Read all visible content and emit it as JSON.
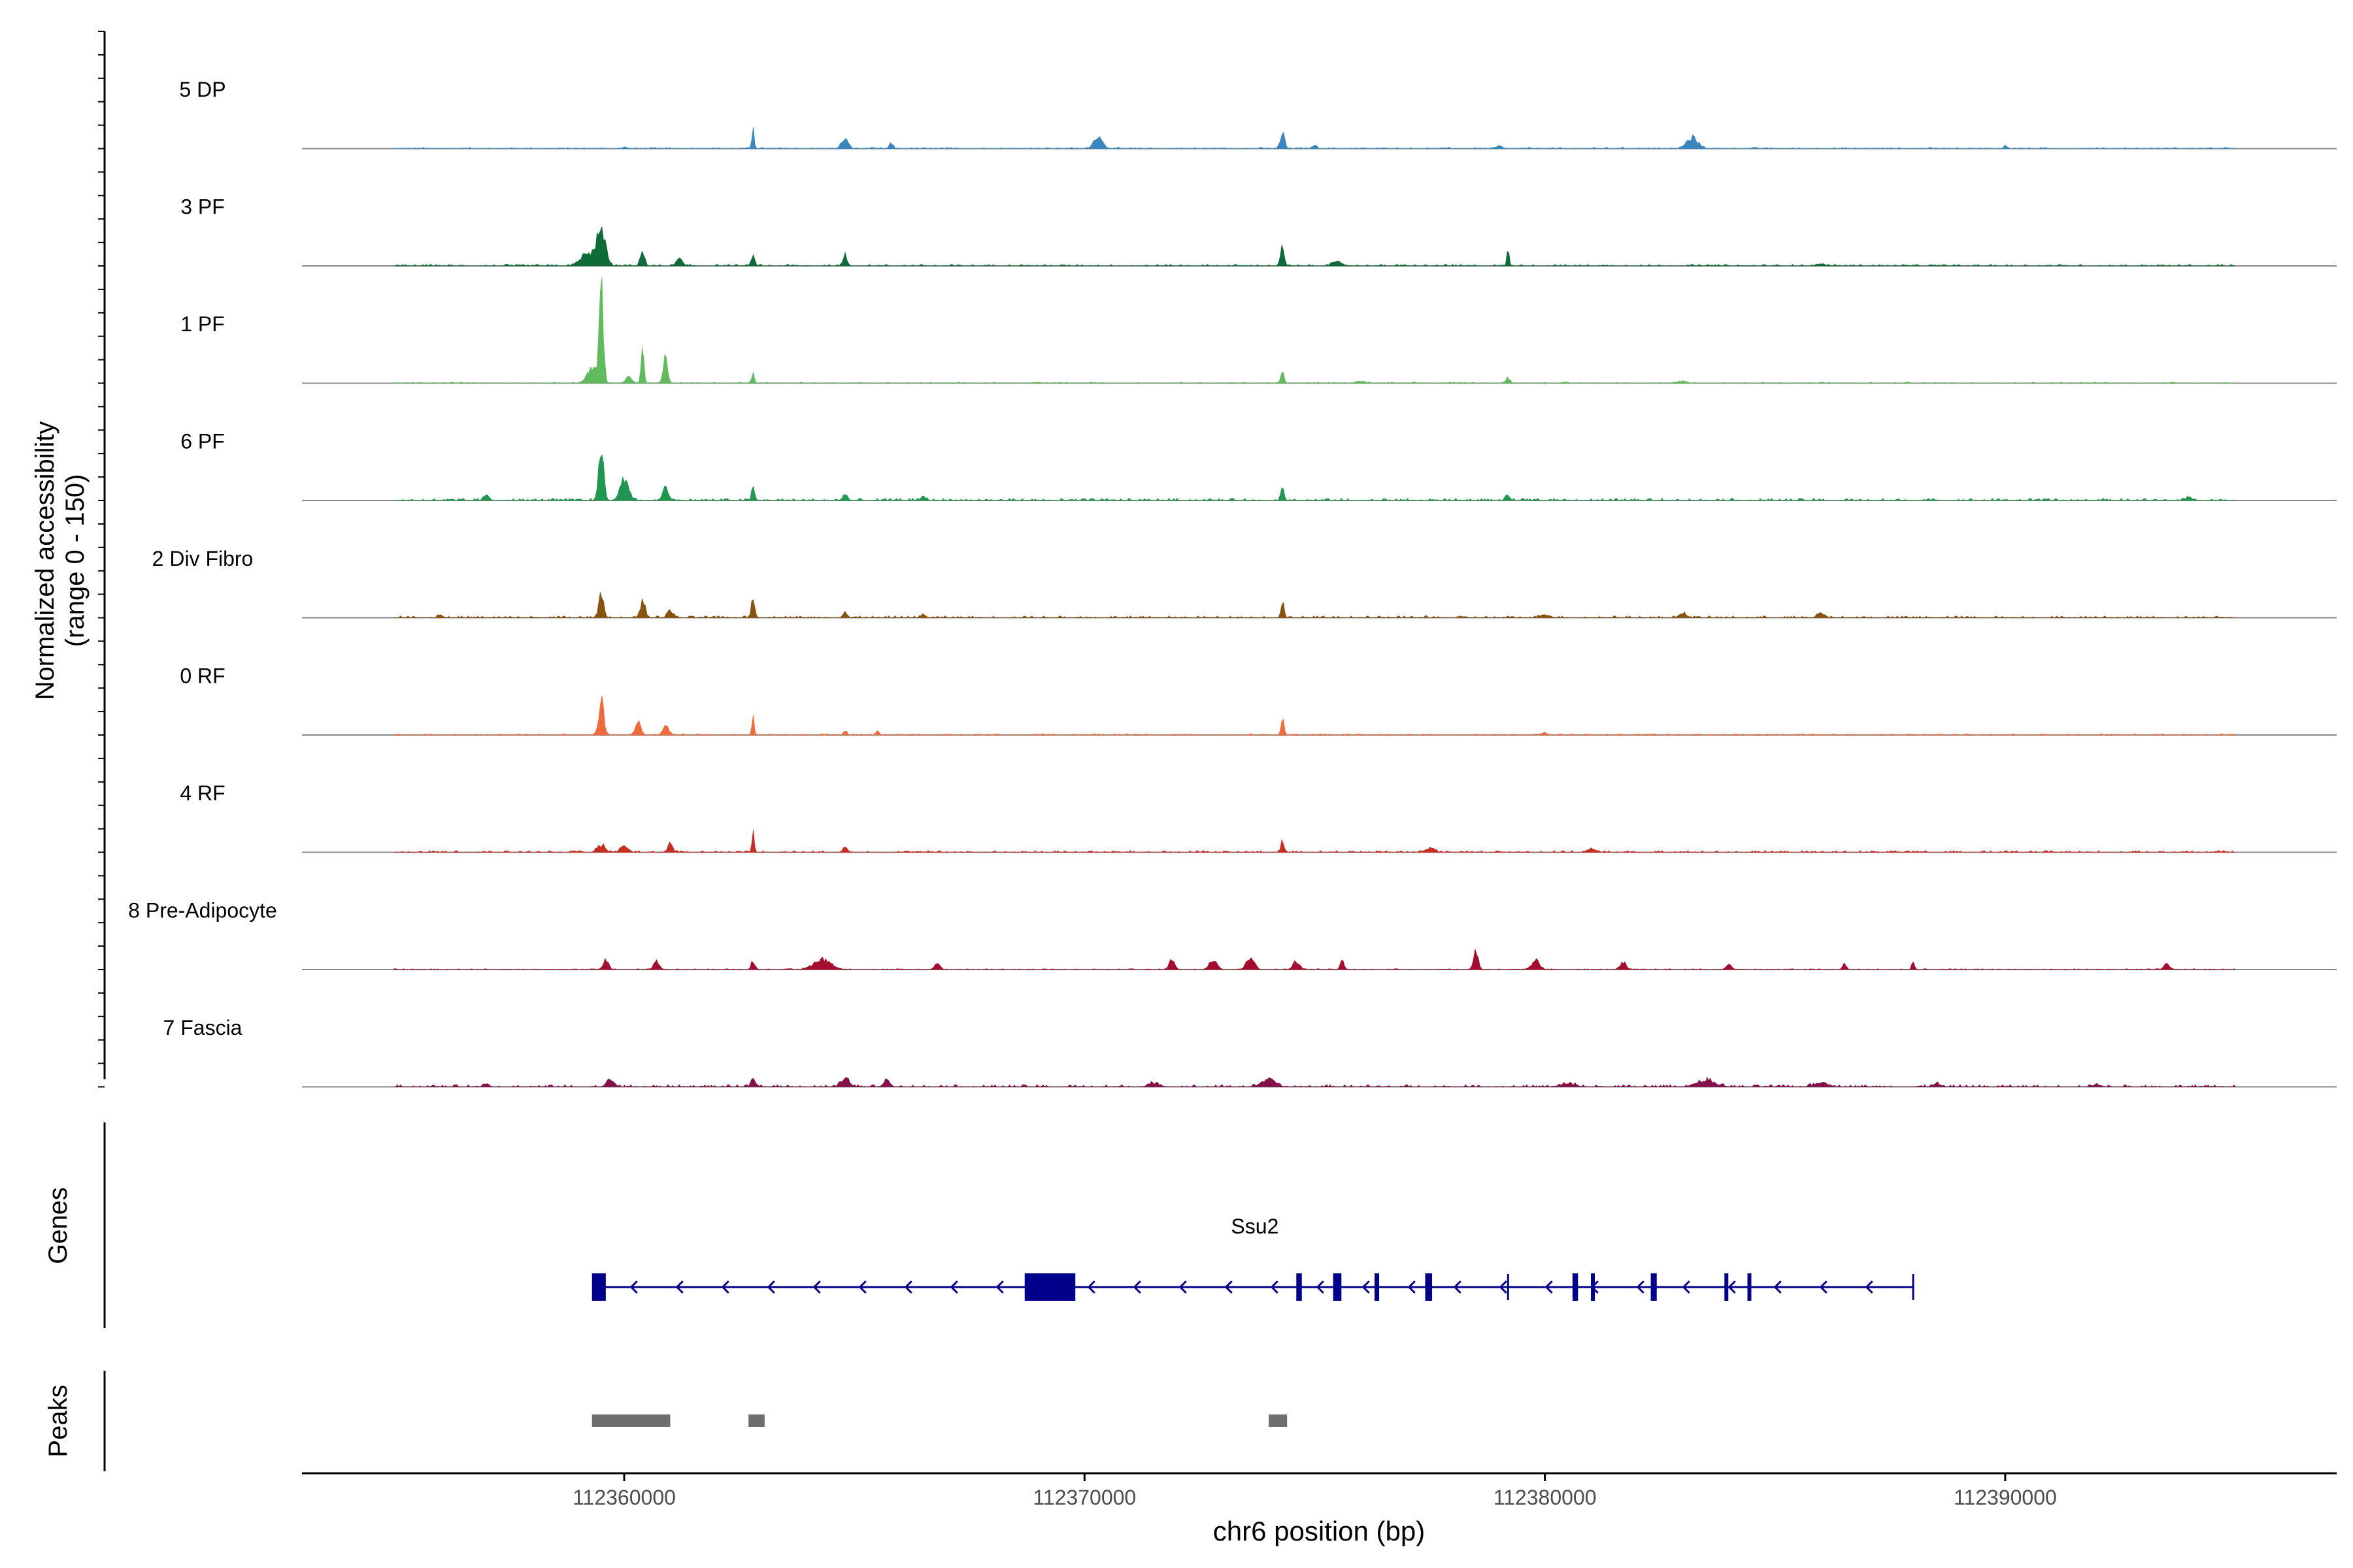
{
  "chart_data": {
    "type": "area",
    "ylabel_line1": "Normalized accessibility",
    "ylabel_line2": "(range 0 - 150)",
    "xlabel": "chr6 position (bp)",
    "xlim": [
      112353000,
      112397200
    ],
    "xticks": [
      112360000,
      112370000,
      112380000,
      112390000
    ],
    "xtick_labels": [
      "112360000",
      "112370000",
      "112380000",
      "112390000"
    ],
    "ylim": [
      0,
      150
    ],
    "tracks_x_range": [
      112355000,
      112395000
    ],
    "series": [
      {
        "name": "5 DP",
        "color": "#3a87c0",
        "noise": 1.2,
        "peaks": [
          [
            112360000,
            1.5,
            40
          ],
          [
            112362800,
            18,
            25
          ],
          [
            112364800,
            10,
            70
          ],
          [
            112365800,
            5,
            40
          ],
          [
            112370300,
            12,
            90
          ],
          [
            112374300,
            16,
            45
          ],
          [
            112375000,
            3,
            40
          ],
          [
            112383200,
            10,
            120
          ],
          [
            112379000,
            3,
            50
          ],
          [
            112390000,
            4,
            30
          ]
        ]
      },
      {
        "name": "3 PF",
        "color": "#0f6b38",
        "noise": 1.5,
        "peaks": [
          [
            112359500,
            35,
            90
          ],
          [
            112359200,
            12,
            140
          ],
          [
            112360400,
            14,
            45
          ],
          [
            112361200,
            8,
            55
          ],
          [
            112362800,
            11,
            35
          ],
          [
            112364800,
            12,
            40
          ],
          [
            112374300,
            18,
            40
          ],
          [
            112379200,
            16,
            25
          ],
          [
            112375500,
            3,
            120
          ],
          [
            112386000,
            2,
            70
          ]
        ]
      },
      {
        "name": "1 PF",
        "color": "#61bb5e",
        "noise": 1.0,
        "peaks": [
          [
            112359500,
            85,
            45
          ],
          [
            112359300,
            15,
            110
          ],
          [
            112360400,
            30,
            30
          ],
          [
            112360900,
            26,
            45
          ],
          [
            112360100,
            6,
            60
          ],
          [
            112362800,
            9,
            30
          ],
          [
            112374300,
            12,
            35
          ],
          [
            112379200,
            5,
            40
          ],
          [
            112376000,
            2,
            80
          ],
          [
            112383000,
            2,
            80
          ]
        ]
      },
      {
        "name": "6 PF",
        "color": "#219650",
        "noise": 2.0,
        "peaks": [
          [
            112359500,
            45,
            55
          ],
          [
            112360000,
            22,
            90
          ],
          [
            112360900,
            14,
            60
          ],
          [
            112362800,
            14,
            30
          ],
          [
            112357000,
            4,
            60
          ],
          [
            112364800,
            6,
            45
          ],
          [
            112366500,
            4,
            50
          ],
          [
            112374300,
            12,
            35
          ],
          [
            112379200,
            5,
            40
          ],
          [
            112394000,
            3,
            60
          ]
        ]
      },
      {
        "name": "2 Div Fibro",
        "color": "#88520f",
        "noise": 1.8,
        "peaks": [
          [
            112359500,
            22,
            50
          ],
          [
            112360400,
            14,
            60
          ],
          [
            112361000,
            7,
            60
          ],
          [
            112362800,
            22,
            35
          ],
          [
            112364800,
            5,
            45
          ],
          [
            112366500,
            3,
            50
          ],
          [
            112374300,
            15,
            30
          ],
          [
            112380000,
            3,
            100
          ],
          [
            112383000,
            4,
            80
          ],
          [
            112386000,
            4,
            80
          ],
          [
            112356000,
            3,
            50
          ]
        ]
      },
      {
        "name": "0 RF",
        "color": "#ec6c3e",
        "noise": 1.2,
        "peaks": [
          [
            112359500,
            32,
            55
          ],
          [
            112360300,
            12,
            60
          ],
          [
            112360900,
            9,
            60
          ],
          [
            112362800,
            16,
            25
          ],
          [
            112364800,
            4,
            35
          ],
          [
            112365500,
            4,
            35
          ],
          [
            112374300,
            15,
            30
          ],
          [
            112380000,
            2,
            60
          ]
        ]
      },
      {
        "name": "4 RF",
        "color": "#c72f24",
        "noise": 1.6,
        "peaks": [
          [
            112359500,
            7,
            80
          ],
          [
            112360000,
            6,
            80
          ],
          [
            112361000,
            9,
            50
          ],
          [
            112362800,
            22,
            22
          ],
          [
            112364800,
            4,
            50
          ],
          [
            112374300,
            11,
            30
          ],
          [
            112377500,
            4,
            100
          ],
          [
            112381000,
            3,
            80
          ]
        ]
      },
      {
        "name": "8 Pre-Adipocyte",
        "color": "#a50d2e",
        "noise": 0.8,
        "peaks": [
          [
            112359600,
            9,
            60
          ],
          [
            112360700,
            8,
            60
          ],
          [
            112362800,
            8,
            40
          ],
          [
            112364300,
            10,
            180
          ],
          [
            112366800,
            5,
            60
          ],
          [
            112371900,
            9,
            60
          ],
          [
            112372800,
            10,
            80
          ],
          [
            112373600,
            12,
            80
          ],
          [
            112374600,
            8,
            70
          ],
          [
            112375600,
            8,
            40
          ],
          [
            112378500,
            18,
            50
          ],
          [
            112379800,
            9,
            80
          ],
          [
            112381700,
            7,
            60
          ],
          [
            112384000,
            5,
            60
          ],
          [
            112386500,
            5,
            40
          ],
          [
            112388000,
            7,
            30
          ],
          [
            112393500,
            5,
            60
          ]
        ]
      },
      {
        "name": "7 Fascia",
        "color": "#85114a",
        "noise": 2.0,
        "peaks": [
          [
            112359700,
            7,
            80
          ],
          [
            112362800,
            9,
            40
          ],
          [
            112364800,
            8,
            90
          ],
          [
            112365700,
            6,
            70
          ],
          [
            112371500,
            3,
            120
          ],
          [
            112374000,
            7,
            140
          ],
          [
            112380500,
            3,
            150
          ],
          [
            112383500,
            6,
            200
          ],
          [
            112386000,
            4,
            150
          ],
          [
            112357000,
            3,
            60
          ],
          [
            112388500,
            3,
            80
          ],
          [
            112392000,
            2,
            80
          ]
        ]
      }
    ],
    "genes": {
      "label": "Genes",
      "gene_name": "Ssu2",
      "color": "#00008b",
      "start": 112359300,
      "end": 112388000,
      "strand": "-",
      "exons": [
        [
          112359300,
          112359600
        ],
        [
          112368700,
          112369800
        ],
        [
          112374600,
          112374720
        ],
        [
          112375400,
          112375580
        ],
        [
          112376300,
          112376400
        ],
        [
          112377400,
          112377550
        ],
        [
          112380600,
          112380720
        ],
        [
          112381000,
          112381080
        ],
        [
          112382300,
          112382430
        ],
        [
          112383900,
          112383980
        ],
        [
          112384400,
          112384480
        ]
      ],
      "minor_ticks": [
        112379200,
        112388000
      ]
    },
    "peaks": {
      "label": "Peaks",
      "color": "#6e6e6e",
      "regions": [
        [
          112359300,
          112361000
        ],
        [
          112362700,
          112363050
        ],
        [
          112374000,
          112374400
        ]
      ]
    }
  }
}
